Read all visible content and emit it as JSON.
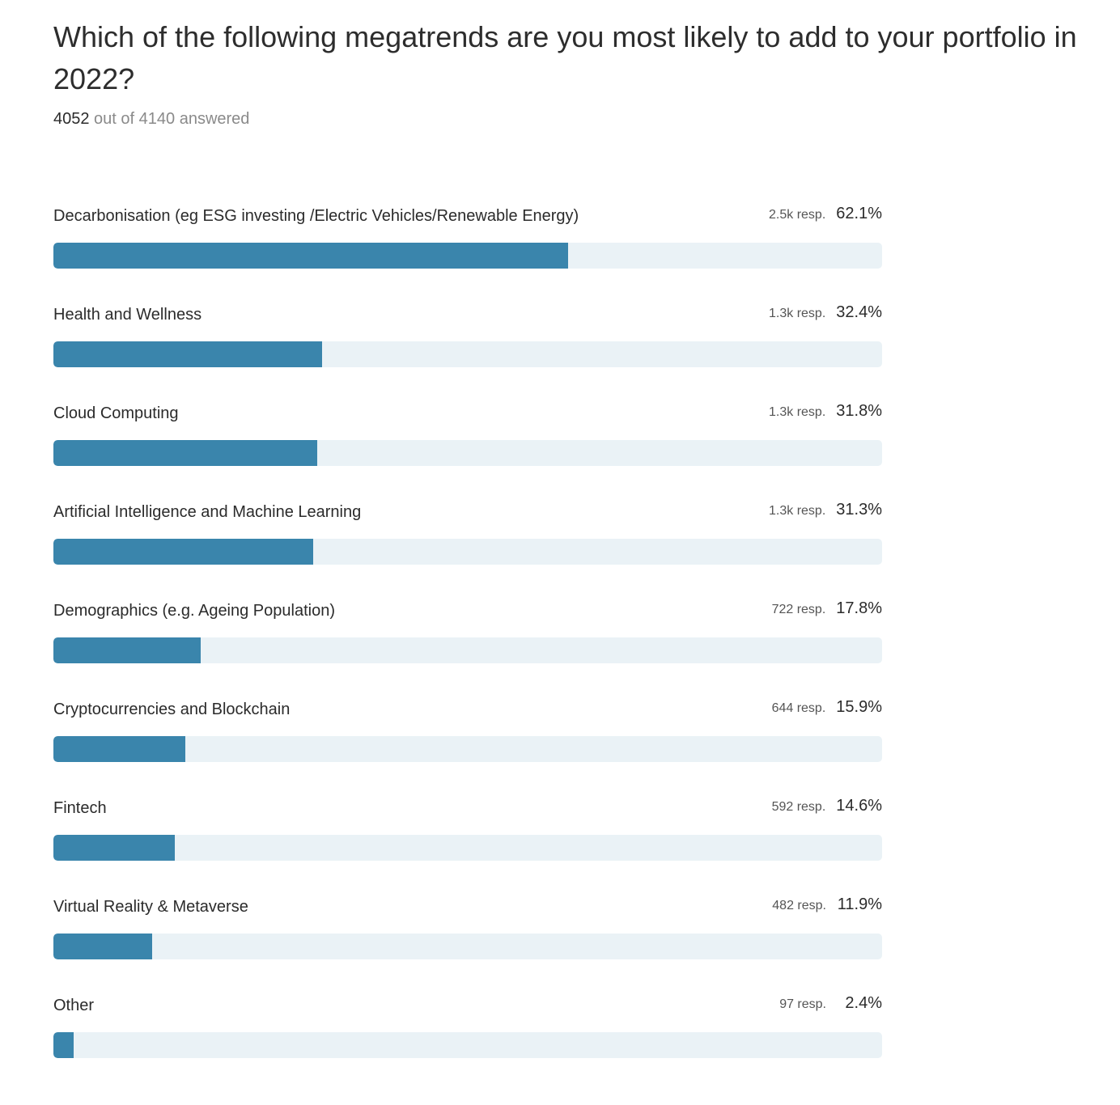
{
  "question": {
    "title": "Which of the following megatrends are you most likely to add to your portfolio in 2022?",
    "answered_count": "4052",
    "answered_suffix": " out of 4140 answered"
  },
  "colors": {
    "bar_fill": "#3a85ac",
    "bar_track": "#eaf2f6"
  },
  "chart_data": {
    "type": "bar",
    "orientation": "horizontal",
    "xlim": [
      0,
      100
    ],
    "categories": [
      "Decarbonisation (eg ESG investing /Electric Vehicles/Renewable Energy)",
      "Health and Wellness",
      "Cloud Computing",
      "Artificial Intelligence and Machine Learning",
      "Demographics (e.g. Ageing Population)",
      "Cryptocurrencies and Blockchain",
      "Fintech",
      "Virtual Reality & Metaverse",
      "Other"
    ],
    "values": [
      62.1,
      32.4,
      31.8,
      31.3,
      17.8,
      15.9,
      14.6,
      11.9,
      2.4
    ],
    "percent_labels": [
      "62.1%",
      "32.4%",
      "31.8%",
      "31.3%",
      "17.8%",
      "15.9%",
      "14.6%",
      "11.9%",
      "2.4%"
    ],
    "response_labels": [
      "2.5k resp.",
      "1.3k resp.",
      "1.3k resp.",
      "1.3k resp.",
      "722 resp.",
      "644 resp.",
      "592 resp.",
      "482 resp.",
      "97 resp."
    ]
  }
}
